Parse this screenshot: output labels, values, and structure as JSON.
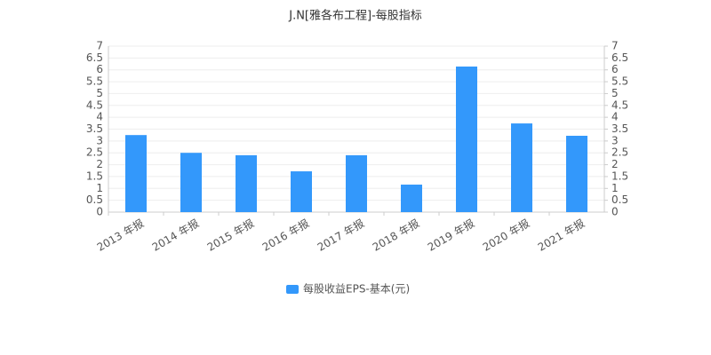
{
  "chart_data": {
    "type": "bar",
    "title": "J.N[雅各布工程]-每股指标",
    "categories": [
      "2013 年报",
      "2014 年报",
      "2015 年报",
      "2016 年报",
      "2017 年报",
      "2018 年报",
      "2019 年报",
      "2020 年报",
      "2021 年报"
    ],
    "series": [
      {
        "name": "每股收益EPS-基本(元)",
        "color": "#3398fb",
        "values": [
          3.25,
          2.5,
          2.4,
          1.72,
          2.4,
          1.16,
          6.14,
          3.74,
          3.22
        ]
      }
    ],
    "ylim": [
      0,
      7
    ],
    "yticks": [
      0,
      0.5,
      1,
      1.5,
      2,
      2.5,
      3,
      3.5,
      4,
      4.5,
      5,
      5.5,
      6,
      6.5,
      7
    ],
    "y2lim": [
      0,
      7
    ],
    "y2ticks": [
      0,
      0.5,
      1,
      1.5,
      2,
      2.5,
      3,
      3.5,
      4,
      4.5,
      5,
      5.5,
      6,
      6.5,
      7
    ],
    "grid": true,
    "legend": "bottom"
  }
}
